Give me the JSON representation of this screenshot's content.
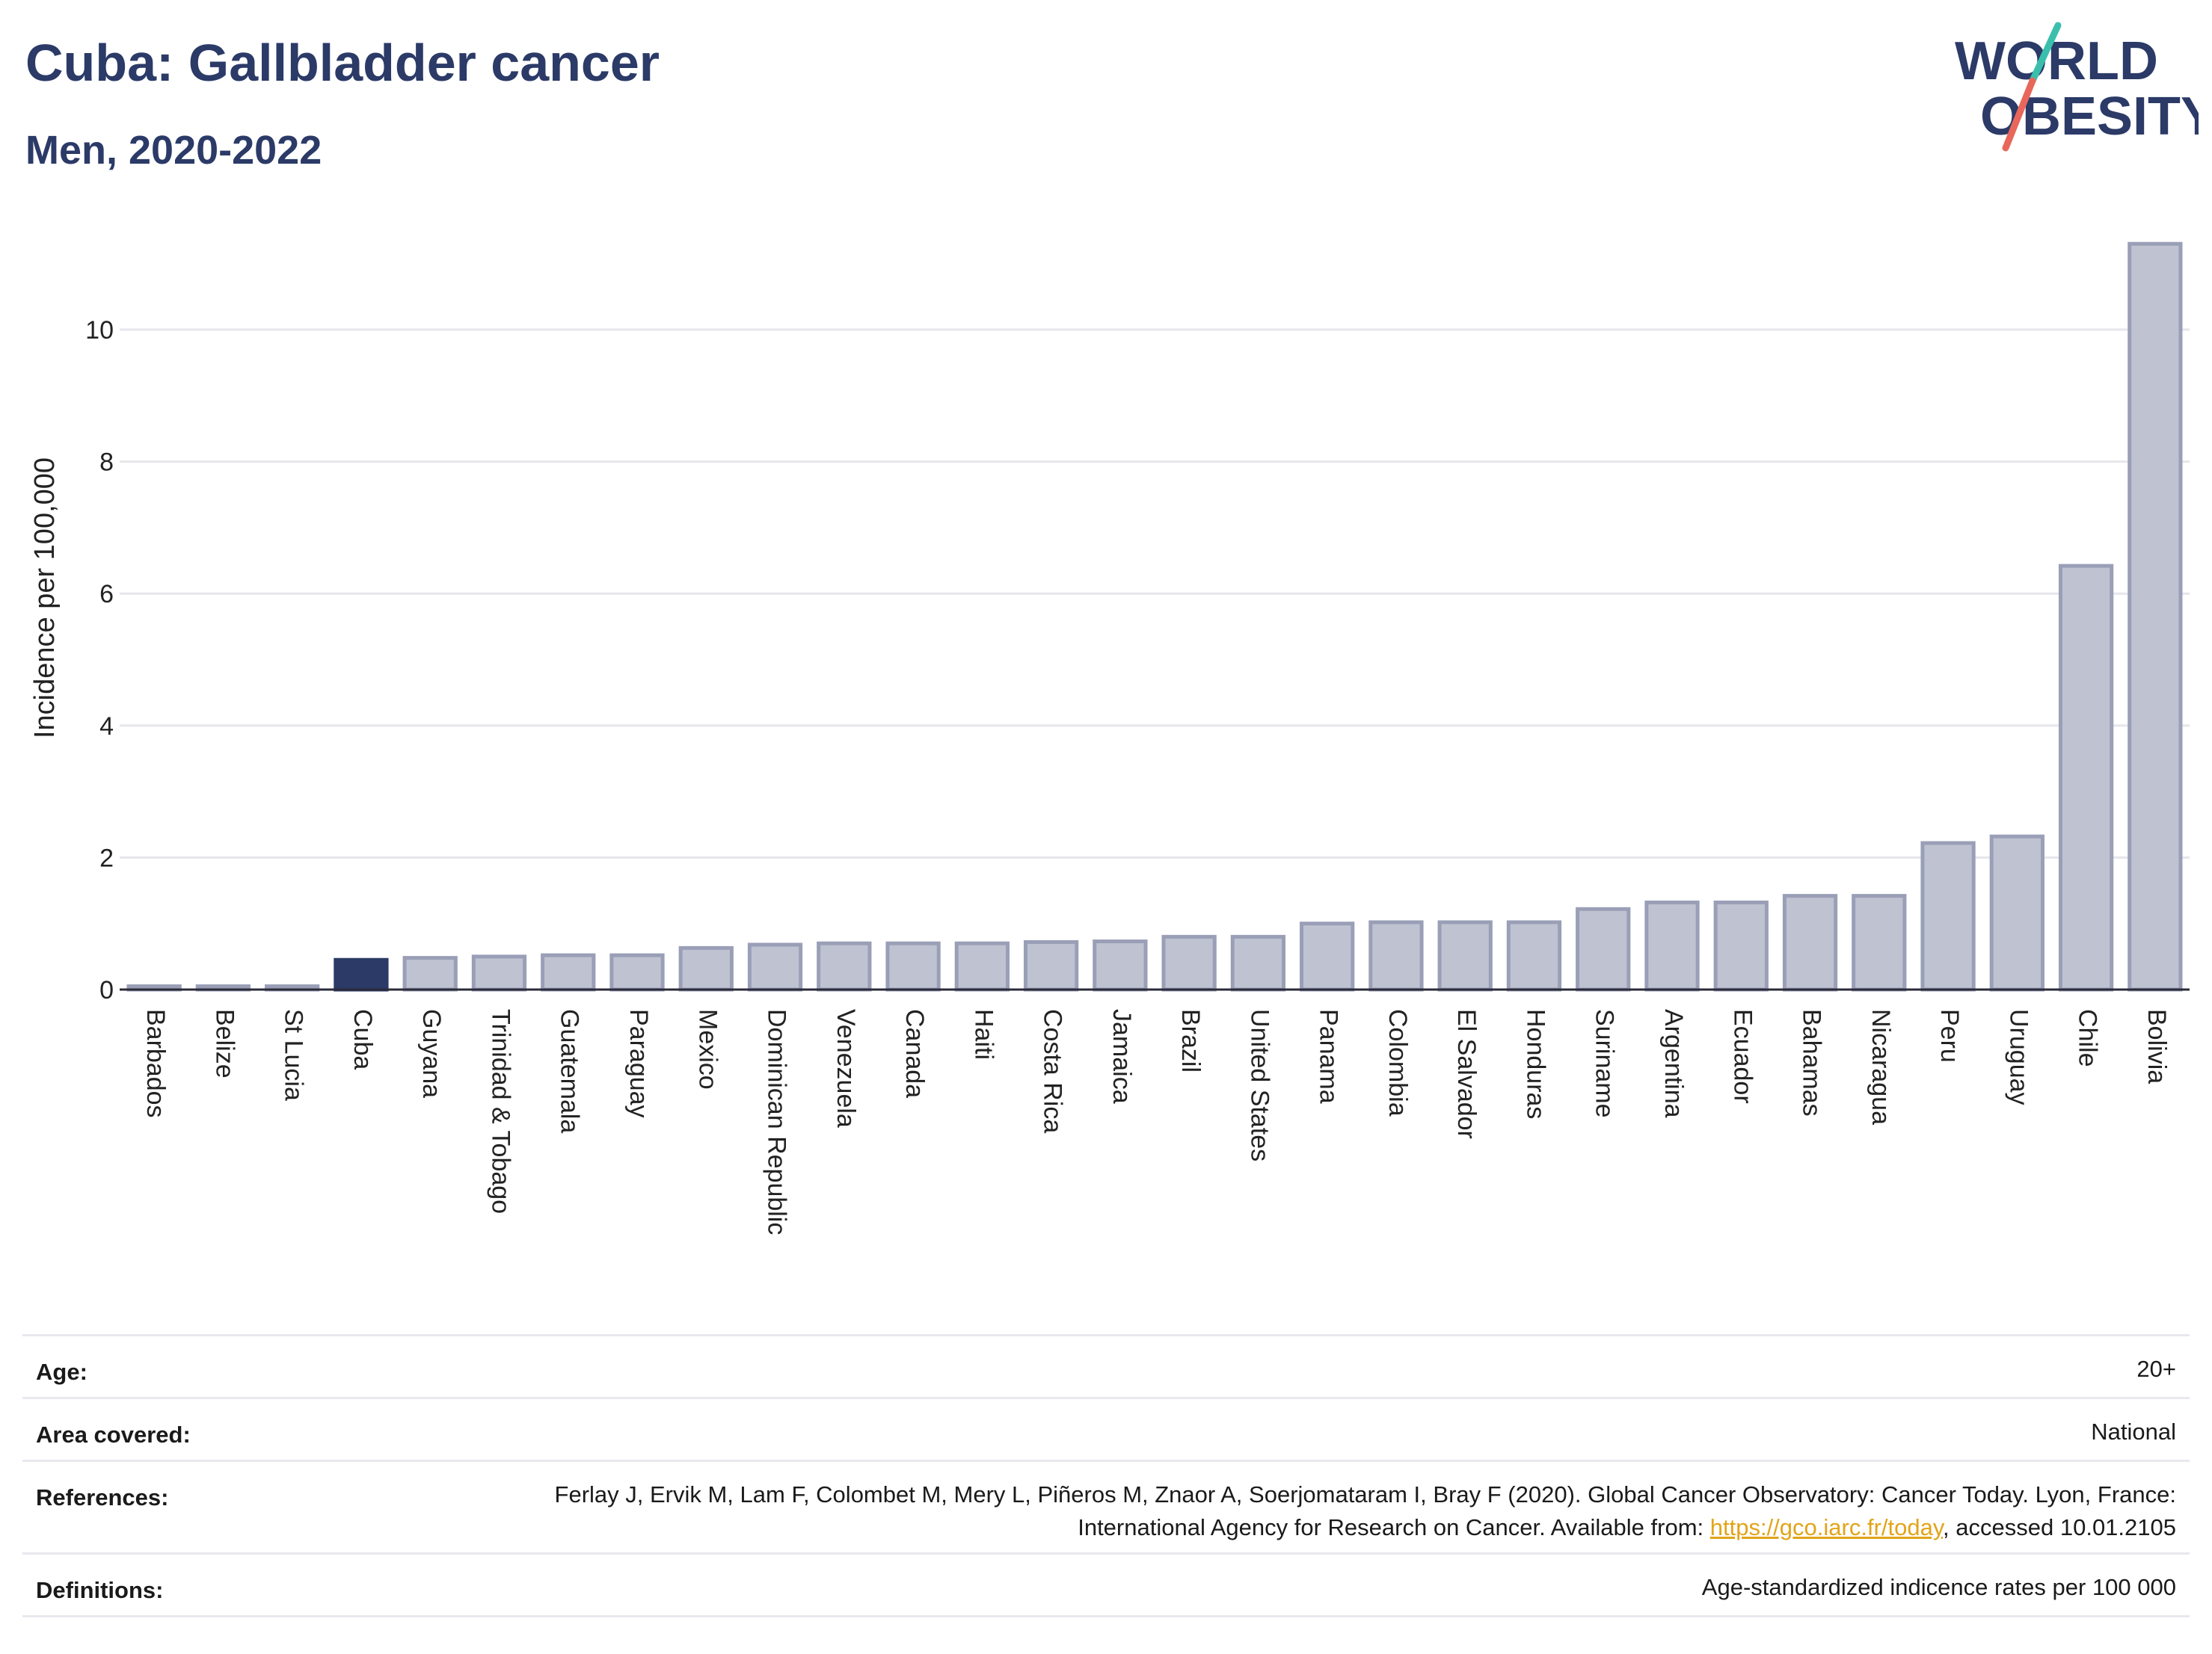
{
  "header": {
    "title": "Cuba: Gallbladder cancer",
    "subtitle": "Men, 2020-2022"
  },
  "logo": {
    "line1": "WORLD",
    "line2": "OBESITY",
    "colors": {
      "text": "#2b3a67",
      "slash_teal": "#3bbfad",
      "slash_coral": "#e8675a"
    }
  },
  "colors": {
    "highlight_bar": "#2b3a67",
    "bar_fill": "#bfc3d1",
    "bar_stroke": "#9a9fb7",
    "grid": "#e6e6ec",
    "title": "#2b3a67",
    "link": "#e2a418"
  },
  "chart_data": {
    "type": "bar",
    "title": "Cuba: Gallbladder cancer",
    "subtitle": "Men, 2020-2022",
    "xlabel": "",
    "ylabel": "Incidence per 100,000",
    "ylim": [
      0,
      11.3
    ],
    "yticks": [
      0,
      2,
      4,
      6,
      8,
      10
    ],
    "grid": true,
    "highlight": "Cuba",
    "categories": [
      "Barbados",
      "Belize",
      "St Lucia",
      "Cuba",
      "Guyana",
      "Trinidad & Tobago",
      "Guatemala",
      "Paraguay",
      "Mexico",
      "Dominican Republic",
      "Venezuela",
      "Canada",
      "Haiti",
      "Costa Rica",
      "Jamaica",
      "Brazil",
      "United States",
      "Panama",
      "Colombia",
      "El Salvador",
      "Honduras",
      "Suriname",
      "Argentina",
      "Ecuador",
      "Bahamas",
      "Nicaragua",
      "Peru",
      "Uruguay",
      "Chile",
      "Bolivia"
    ],
    "values": [
      0.05,
      0.05,
      0.05,
      0.45,
      0.48,
      0.5,
      0.52,
      0.52,
      0.63,
      0.68,
      0.7,
      0.7,
      0.7,
      0.72,
      0.73,
      0.8,
      0.8,
      1.0,
      1.02,
      1.02,
      1.02,
      1.22,
      1.32,
      1.32,
      1.42,
      1.42,
      2.22,
      2.32,
      6.42,
      11.3
    ]
  },
  "info": {
    "age_label": "Age:",
    "age_value": "20+",
    "area_label": "Area covered:",
    "area_value": "National",
    "references_label": "References:",
    "references_text": "Ferlay J, Ervik M, Lam F, Colombet M, Mery L, Piñeros M, Znaor A, Soerjomataram I, Bray F (2020). Global Cancer Observatory: Cancer Today. Lyon, France: International Agency for Research on Cancer. Available from: ",
    "references_link": "https://gco.iarc.fr/today",
    "references_suffix": ", accessed 10.01.2105",
    "definitions_label": "Definitions:",
    "definitions_value": "Age-standardized indicence rates per 100 000"
  }
}
